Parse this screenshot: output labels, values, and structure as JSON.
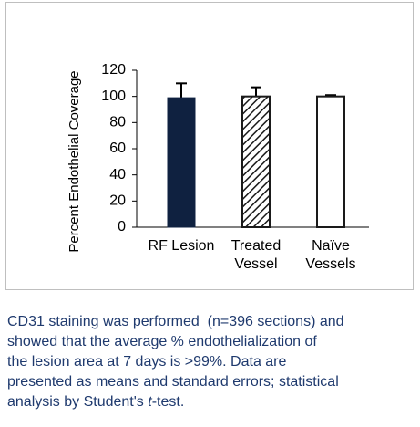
{
  "chart_data": {
    "type": "bar",
    "ylabel": "Percent Endothelial Coverage",
    "categories": [
      [
        "RF Lesion"
      ],
      [
        "Treated",
        "Vessel"
      ],
      [
        "Naïve",
        "Vessels"
      ]
    ],
    "values": [
      99,
      100,
      100
    ],
    "errors": [
      11,
      7,
      1
    ],
    "bar_styles": [
      "solid",
      "hatched",
      "outline"
    ],
    "colors": [
      "#0f2140",
      "#1a1a1a",
      "#1a1a1a"
    ],
    "ylim": [
      0,
      120
    ],
    "yticks": [
      0,
      20,
      40,
      60,
      80,
      100,
      120
    ],
    "grid": false
  },
  "caption": {
    "lines": [
      "CD31 staining was performed  (n=396 sections) and",
      "showed that the average % endothelialization of",
      "the lesion area at 7 days is >99%. Data are",
      "presented as means and standard errors; statistical"
    ],
    "last_line": [
      "analysis by Student's ",
      "t",
      "-test."
    ]
  }
}
